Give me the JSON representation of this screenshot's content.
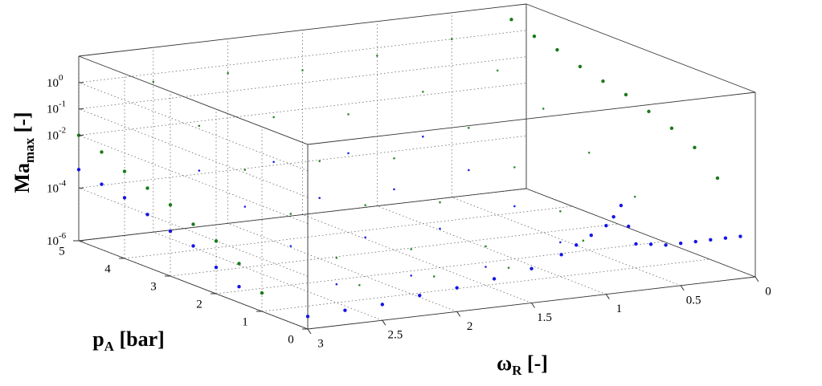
{
  "chart_data": {
    "type": "scatter3d",
    "xlabel": {
      "text": "ω",
      "sub": "R",
      "unit": "[-]"
    },
    "ylabel": {
      "text": "p",
      "sub": "A",
      "unit": "[bar]"
    },
    "zlabel": {
      "text": "Ma",
      "sub": "max",
      "unit": "[-]"
    },
    "xlim": [
      3,
      0
    ],
    "ylim": [
      0,
      5
    ],
    "zlim": [
      1e-06,
      10
    ],
    "zscale": "log",
    "grid": true,
    "xticks": [
      0,
      0.5,
      1,
      1.5,
      2,
      2.5,
      3
    ],
    "yticks": [
      0,
      1,
      2,
      3,
      4,
      5
    ],
    "zticks": [
      {
        "value": 1e-06,
        "label": "10",
        "exp": "-6"
      },
      {
        "value": 0.0001,
        "label": "10",
        "exp": "-4"
      },
      {
        "value": 0.01,
        "label": "10",
        "exp": "-2"
      },
      {
        "value": 0.1,
        "label": "10",
        "exp": "-1"
      },
      {
        "value": 1,
        "label": "10",
        "exp": "0"
      }
    ],
    "series": [
      {
        "color": "#1414e6",
        "size": 2.2,
        "x": [
          3,
          2.75,
          2.5,
          2.25,
          2,
          1.75,
          1.5,
          1.3,
          1.2,
          1.1,
          1,
          0.95,
          0.9,
          0.85,
          0.8,
          0.7,
          0.6,
          0.5,
          0.4,
          0.3,
          0.2,
          0.1
        ],
        "y": [
          0,
          0,
          0,
          0,
          0,
          0,
          0,
          0,
          0,
          0,
          0,
          0,
          0,
          0,
          0,
          0,
          0,
          0,
          0,
          0,
          0,
          0
        ],
        "z": [
          3e-06,
          3.5e-06,
          4e-06,
          6e-06,
          8e-06,
          1.2e-05,
          2e-05,
          5e-05,
          0.0001,
          0.0002,
          0.0004,
          0.0008,
          0.002,
          0.0003,
          6e-05,
          5e-05,
          4e-05,
          4e-05,
          4e-05,
          4e-05,
          4e-05,
          4e-05
        ]
      },
      {
        "color": "#1a7a1a",
        "size": 2.2,
        "x": [
          0.1,
          0.1,
          0.1,
          0.1,
          0.1,
          0.1,
          0.1,
          0.1,
          0.1,
          0.1
        ],
        "y": [
          5,
          4.5,
          4,
          3.5,
          3,
          2.5,
          2,
          1.5,
          1,
          0.5
        ],
        "z": [
          3,
          1.5,
          1,
          0.5,
          0.3,
          0.2,
          0.1,
          0.05,
          0.02,
          0.003
        ]
      },
      {
        "color": "#1a7a1a",
        "size": 2.2,
        "x": [
          3,
          3,
          3,
          3,
          3,
          3,
          3,
          3,
          3
        ],
        "y": [
          5,
          4.5,
          4,
          3.5,
          3,
          2.5,
          2,
          1.5,
          1
        ],
        "z": [
          0.01,
          0.005,
          0.002,
          0.001,
          0.0005,
          0.0002,
          0.0001,
          3e-05,
          5e-06
        ]
      },
      {
        "color": "#1414e6",
        "size": 2.2,
        "x": [
          3,
          3,
          3,
          3,
          3,
          3,
          3,
          3
        ],
        "y": [
          5,
          4.5,
          4,
          3.5,
          3,
          2.5,
          2,
          1.5
        ],
        "z": [
          0.0005,
          0.0003,
          0.0002,
          0.0001,
          5e-05,
          3e-05,
          1e-05,
          4e-06
        ]
      },
      {
        "color": "#2a8a2a",
        "size": 1.3,
        "x": [
          2.5,
          2.5,
          2.5,
          2.5,
          2.5,
          2.5,
          2,
          2,
          2,
          2,
          2,
          2,
          1.5,
          1.5,
          1.5,
          1.5,
          1.5,
          1.5,
          1,
          1,
          1,
          1,
          1,
          1,
          0.5,
          0.5,
          0.5,
          0.5,
          0.5
        ],
        "y": [
          5,
          4,
          3,
          2,
          1,
          0.5,
          5,
          4,
          3,
          2,
          1,
          0.5,
          5,
          4,
          3,
          2,
          1,
          0.5,
          5,
          4,
          3,
          2,
          1,
          0.5,
          5,
          4,
          3,
          2,
          1
        ],
        "z": [
          0.5,
          0.05,
          0.005,
          0.0005,
          5e-05,
          1e-05,
          0.5,
          0.05,
          0.005,
          0.0005,
          5e-05,
          1e-05,
          0.3,
          0.03,
          0.003,
          0.0003,
          3e-05,
          1e-05,
          0.5,
          0.1,
          0.02,
          0.003,
          0.0003,
          5e-05,
          1,
          0.3,
          0.05,
          0.005,
          0.0005
        ]
      },
      {
        "color": "#2020e0",
        "size": 1.3,
        "x": [
          2.5,
          2.5,
          2.5,
          2.5,
          2,
          2,
          2,
          2,
          1.5,
          1.5,
          1.5,
          1.5,
          1,
          1,
          1,
          1
        ],
        "y": [
          4,
          3,
          2,
          1,
          4,
          3,
          2,
          1,
          4,
          3,
          2,
          1,
          4,
          3,
          2,
          1
        ],
        "z": [
          0.001,
          0.0002,
          3e-05,
          5e-06,
          0.001,
          0.0002,
          3e-05,
          5e-06,
          0.001,
          0.0002,
          3e-05,
          5e-06,
          0.002,
          0.0005,
          0.0001,
          2e-05
        ]
      }
    ]
  }
}
